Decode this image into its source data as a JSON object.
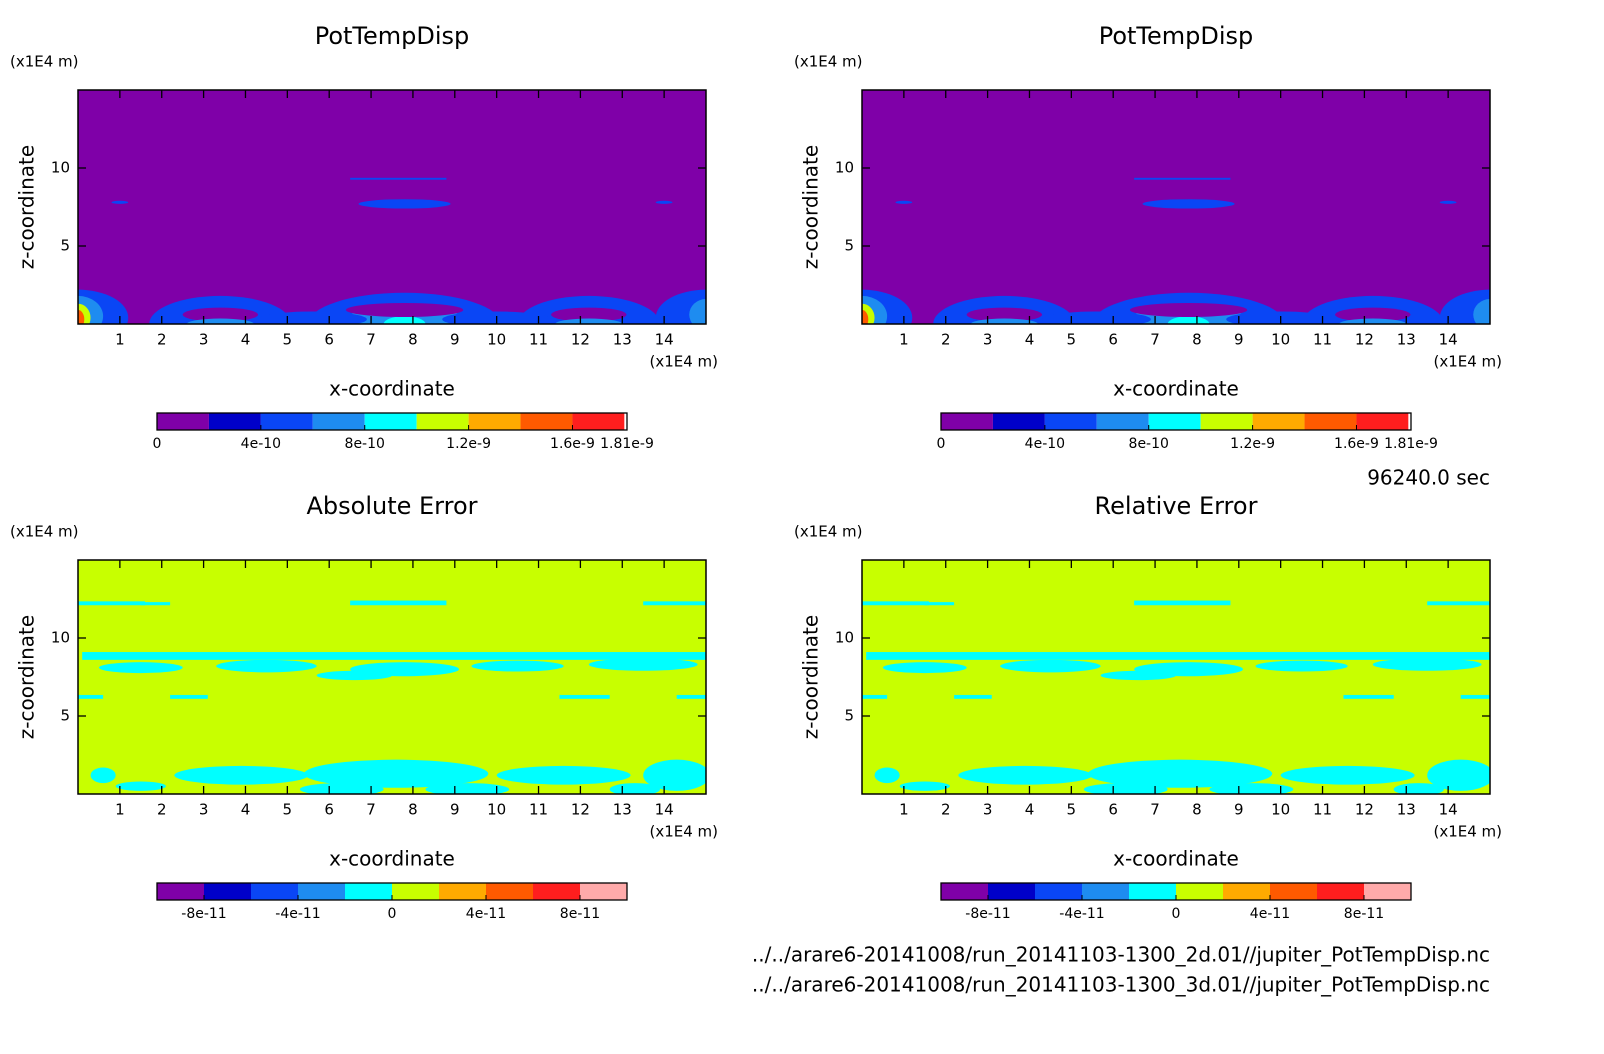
{
  "chart_data": [
    {
      "type": "contour",
      "title": "PotTempDisp",
      "xlabel": "x-coordinate",
      "ylabel": "z-coordinate",
      "x_unit": "(x1E4 m)",
      "y_unit": "(x1E4 m)",
      "xlim": [
        0,
        15
      ],
      "ylim": [
        0,
        15
      ],
      "xticks": [
        1,
        2,
        3,
        4,
        5,
        6,
        7,
        8,
        9,
        10,
        11,
        12,
        13,
        14
      ],
      "yticks": [
        5,
        10
      ],
      "colorbar": {
        "lim": [
          0,
          1.81e-09
        ],
        "levels": [
          0,
          2e-10,
          4e-10,
          6e-10,
          8e-10,
          1e-09,
          1.2e-09,
          1.4e-09,
          1.6e-09,
          1.8e-09,
          1.81e-09
        ],
        "colors": [
          "#7f00a8",
          "#0000c8",
          "#0a46f5",
          "#1e8cf0",
          "#00ffff",
          "#c8ff00",
          "#ffaa00",
          "#ff5a00",
          "#ff1e1e",
          "#ffffff"
        ],
        "ticks": [
          0,
          4e-10,
          8e-10,
          1.2e-09,
          1.6e-09,
          1.81e-09
        ]
      }
    },
    {
      "type": "contour",
      "title": "PotTempDisp",
      "xlabel": "x-coordinate",
      "ylabel": "z-coordinate",
      "x_unit": "(x1E4 m)",
      "y_unit": "(x1E4 m)",
      "xlim": [
        0,
        15
      ],
      "ylim": [
        0,
        15
      ],
      "xticks": [
        1,
        2,
        3,
        4,
        5,
        6,
        7,
        8,
        9,
        10,
        11,
        12,
        13,
        14
      ],
      "yticks": [
        5,
        10
      ],
      "colorbar": {
        "lim": [
          0,
          1.81e-09
        ],
        "levels": [
          0,
          2e-10,
          4e-10,
          6e-10,
          8e-10,
          1e-09,
          1.2e-09,
          1.4e-09,
          1.6e-09,
          1.8e-09,
          1.81e-09
        ],
        "colors": [
          "#7f00a8",
          "#0000c8",
          "#0a46f5",
          "#1e8cf0",
          "#00ffff",
          "#c8ff00",
          "#ffaa00",
          "#ff5a00",
          "#ff1e1e",
          "#ffffff"
        ],
        "ticks": [
          0,
          4e-10,
          8e-10,
          1.2e-09,
          1.6e-09,
          1.81e-09
        ]
      }
    },
    {
      "type": "contour",
      "title": "Absolute Error",
      "xlabel": "x-coordinate",
      "ylabel": "z-coordinate",
      "x_unit": "(x1E4 m)",
      "y_unit": "(x1E4 m)",
      "xlim": [
        0,
        15
      ],
      "ylim": [
        0,
        15
      ],
      "xticks": [
        1,
        2,
        3,
        4,
        5,
        6,
        7,
        8,
        9,
        10,
        11,
        12,
        13,
        14
      ],
      "yticks": [
        5,
        10
      ],
      "colorbar": {
        "lim": [
          -1e-10,
          1e-10
        ],
        "levels": [
          -1e-10,
          -8e-11,
          -6e-11,
          -4e-11,
          -2e-11,
          0,
          2e-11,
          4e-11,
          6e-11,
          8e-11,
          1e-10
        ],
        "colors": [
          "#7f00a8",
          "#0000c8",
          "#0a46f5",
          "#1e8cf0",
          "#00ffff",
          "#c8ff00",
          "#ffaa00",
          "#ff5a00",
          "#ff1e1e",
          "#ffaaaa"
        ],
        "ticks": [
          -8e-11,
          -4e-11,
          0,
          4e-11,
          8e-11
        ]
      }
    },
    {
      "type": "contour",
      "title": "Relative Error",
      "xlabel": "x-coordinate",
      "ylabel": "z-coordinate",
      "x_unit": "(x1E4 m)",
      "y_unit": "(x1E4 m)",
      "xlim": [
        0,
        15
      ],
      "ylim": [
        0,
        15
      ],
      "xticks": [
        1,
        2,
        3,
        4,
        5,
        6,
        7,
        8,
        9,
        10,
        11,
        12,
        13,
        14
      ],
      "yticks": [
        5,
        10
      ],
      "colorbar": {
        "lim": [
          -1e-10,
          1e-10
        ],
        "levels": [
          -1e-10,
          -8e-11,
          -6e-11,
          -4e-11,
          -2e-11,
          0,
          2e-11,
          4e-11,
          6e-11,
          8e-11,
          1e-10
        ],
        "colors": [
          "#7f00a8",
          "#0000c8",
          "#0a46f5",
          "#1e8cf0",
          "#00ffff",
          "#c8ff00",
          "#ffaa00",
          "#ff5a00",
          "#ff1e1e",
          "#ffaaaa"
        ],
        "ticks": [
          -8e-11,
          -4e-11,
          0,
          4e-11,
          8e-11
        ]
      }
    }
  ],
  "annotations": {
    "time": "96240.0 sec",
    "files": [
      "../../arare6-20141008/run_20141103-1300_2d.01//jupiter_PotTempDisp.nc",
      "../../arare6-20141008/run_20141103-1300_3d.01//jupiter_PotTempDisp.nc"
    ]
  }
}
